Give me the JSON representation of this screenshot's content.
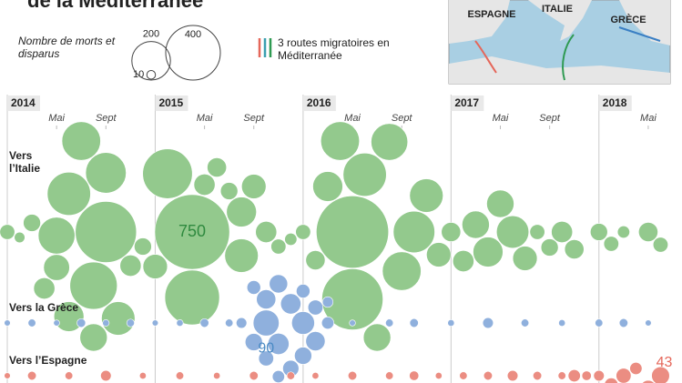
{
  "chart_data": {
    "type": "bubble",
    "title": "de la Méditerranée",
    "size_legend": {
      "label": "Nombre de morts et disparus",
      "values": [
        10,
        200,
        400
      ]
    },
    "routes_legend": "3 routes migratoires en Méditerranée",
    "map_labels": [
      "ESPAGNE",
      "ITALIE",
      "GRÈCE"
    ],
    "xlim": [
      "2014-01",
      "2018-07"
    ],
    "year_ticks": [
      {
        "value": "2014-01",
        "label": "2014"
      },
      {
        "value": "2015-01",
        "label": "2015"
      },
      {
        "value": "2016-01",
        "label": "2016"
      },
      {
        "value": "2017-01",
        "label": "2017"
      },
      {
        "value": "2018-01",
        "label": "2018"
      }
    ],
    "month_ticks": [
      {
        "value": "2014-05",
        "label": "Mai"
      },
      {
        "value": "2014-09",
        "label": "Sept"
      },
      {
        "value": "2015-05",
        "label": "Mai"
      },
      {
        "value": "2015-09",
        "label": "Sept"
      },
      {
        "value": "2016-05",
        "label": "Mai"
      },
      {
        "value": "2016-09",
        "label": "Sept"
      },
      {
        "value": "2017-05",
        "label": "Mai"
      },
      {
        "value": "2017-09",
        "label": "Sept"
      },
      {
        "value": "2018-05",
        "label": "Mai"
      }
    ],
    "series": [
      {
        "name": "Vers l’Italie",
        "color": "#93c98d",
        "label_color": "#2f8a3f",
        "labeled": 18,
        "x": [
          "2014-01",
          "2014-02",
          "2014-03",
          "2014-04",
          "2014-05",
          "2014-05",
          "2014-06",
          "2014-06",
          "2014-07",
          "2014-08",
          "2014-08",
          "2014-09",
          "2014-09",
          "2014-10",
          "2014-11",
          "2014-12",
          "2015-01",
          "2015-02",
          "2015-04",
          "2015-04",
          "2015-05",
          "2015-06",
          "2015-07",
          "2015-08",
          "2015-08",
          "2015-09",
          "2015-10",
          "2015-11",
          "2015-12",
          "2016-01",
          "2016-02",
          "2016-03",
          "2016-04",
          "2016-05",
          "2016-05",
          "2016-06",
          "2016-07",
          "2016-08",
          "2016-09",
          "2016-10",
          "2016-11",
          "2016-12",
          "2017-01",
          "2017-02",
          "2017-03",
          "2017-04",
          "2017-05",
          "2017-06",
          "2017-07",
          "2017-08",
          "2017-09",
          "2017-10",
          "2017-11",
          "2018-01",
          "2018-02",
          "2018-03",
          "2018-05",
          "2018-06"
        ],
        "values": [
          30,
          15,
          40,
          60,
          180,
          90,
          250,
          120,
          200,
          300,
          100,
          500,
          220,
          150,
          60,
          40,
          80,
          330,
          750,
          400,
          60,
          50,
          40,
          150,
          120,
          80,
          60,
          30,
          20,
          30,
          50,
          120,
          200,
          700,
          500,
          250,
          100,
          180,
          200,
          230,
          150,
          80,
          50,
          60,
          100,
          120,
          100,
          140,
          80,
          30,
          40,
          60,
          50,
          40,
          30,
          20,
          50,
          30
        ]
      },
      {
        "name": "Vers la Grèce",
        "color": "#8fb0dd",
        "label_color": "#4a8ac4",
        "labeled": 13,
        "x": [
          "2014-01",
          "2014-03",
          "2014-05",
          "2014-07",
          "2014-09",
          "2014-11",
          "2015-01",
          "2015-03",
          "2015-05",
          "2015-07",
          "2015-08",
          "2015-09",
          "2015-09",
          "2015-10",
          "2015-10",
          "2015-10",
          "2015-11",
          "2015-11",
          "2015-11",
          "2015-12",
          "2015-12",
          "2016-01",
          "2016-01",
          "2016-01",
          "2016-02",
          "2016-02",
          "2016-03",
          "2016-03",
          "2016-05",
          "2016-08",
          "2016-10",
          "2017-01",
          "2017-04",
          "2017-07",
          "2017-10",
          "2018-01",
          "2018-03",
          "2018-05"
        ],
        "values": [
          5,
          8,
          5,
          10,
          6,
          8,
          5,
          6,
          10,
          8,
          15,
          40,
          25,
          90,
          30,
          50,
          45,
          60,
          20,
          35,
          55,
          70,
          40,
          25,
          50,
          30,
          20,
          15,
          5,
          8,
          10,
          6,
          15,
          8,
          6,
          8,
          10,
          5
        ]
      },
      {
        "name": "Vers l’Espagne",
        "color": "#eb8d82",
        "label_color": "#e5675a",
        "labeled": 26,
        "x": [
          "2014-01",
          "2014-03",
          "2014-06",
          "2014-09",
          "2014-12",
          "2015-03",
          "2015-06",
          "2015-09",
          "2015-12",
          "2016-02",
          "2016-05",
          "2016-08",
          "2016-10",
          "2016-12",
          "2017-02",
          "2017-04",
          "2017-06",
          "2017-08",
          "2017-10",
          "2017-11",
          "2017-12",
          "2018-01",
          "2018-02",
          "2018-03",
          "2018-04",
          "2018-05",
          "2018-06"
        ],
        "values": [
          5,
          10,
          8,
          15,
          6,
          8,
          6,
          10,
          8,
          6,
          10,
          8,
          12,
          6,
          8,
          10,
          15,
          10,
          8,
          20,
          12,
          15,
          25,
          30,
          20,
          35,
          43
        ]
      }
    ]
  }
}
